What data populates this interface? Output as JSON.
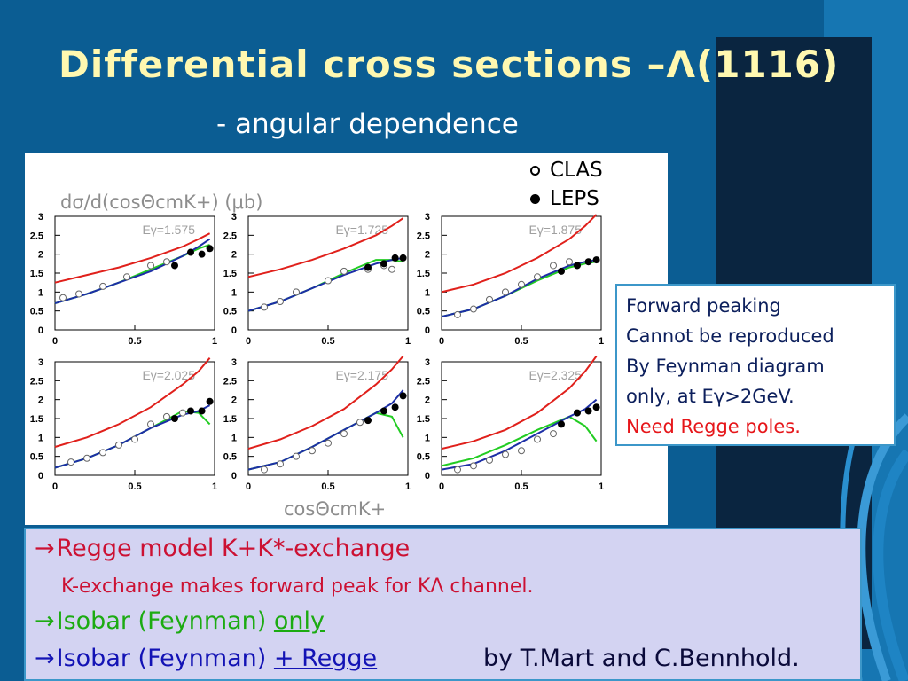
{
  "slide": {
    "title": "Differential cross sections –Λ(1116)",
    "subtitle": "- angular dependence"
  },
  "legend": [
    {
      "label": "CLAS",
      "marker": "open-circle"
    },
    {
      "label": "LEPS",
      "marker": "filled-circle"
    }
  ],
  "chart_data": {
    "type": "line",
    "ylabel": "dσ/d(cosΘcmK+) (μb)",
    "xlabel": "cosΘcmK+",
    "xlim": [
      0,
      1
    ],
    "ylim": [
      0,
      3
    ],
    "xticks": [
      "0",
      "0.5",
      "1"
    ],
    "yticks": [
      "0",
      "0.5",
      "1",
      "1.5",
      "2",
      "2.5",
      "3"
    ],
    "colors": {
      "red": "#e0201b",
      "green": "#22cc22",
      "blue": "#1c2ea6"
    },
    "panels": [
      {
        "label": "Eγ=1.575",
        "red": [
          [
            0,
            1.25
          ],
          [
            0.2,
            1.45
          ],
          [
            0.4,
            1.65
          ],
          [
            0.6,
            1.9
          ],
          [
            0.8,
            2.2
          ],
          [
            0.9,
            2.4
          ],
          [
            0.97,
            2.55
          ]
        ],
        "green": [
          [
            0,
            0.7
          ],
          [
            0.2,
            0.95
          ],
          [
            0.4,
            1.25
          ],
          [
            0.6,
            1.6
          ],
          [
            0.8,
            1.95
          ],
          [
            0.9,
            2.15
          ],
          [
            0.97,
            2.25
          ]
        ],
        "blue": [
          [
            0,
            0.7
          ],
          [
            0.2,
            0.95
          ],
          [
            0.4,
            1.25
          ],
          [
            0.6,
            1.55
          ],
          [
            0.8,
            1.95
          ],
          [
            0.9,
            2.2
          ],
          [
            0.97,
            2.4
          ]
        ],
        "clas": [
          [
            0.05,
            0.85
          ],
          [
            0.15,
            0.95
          ],
          [
            0.3,
            1.15
          ],
          [
            0.45,
            1.4
          ],
          [
            0.6,
            1.7
          ],
          [
            0.7,
            1.8
          ]
        ],
        "leps": [
          [
            0.75,
            1.7
          ],
          [
            0.85,
            2.05
          ],
          [
            0.92,
            2.0
          ],
          [
            0.97,
            2.15
          ]
        ]
      },
      {
        "label": "Eγ=1.725",
        "red": [
          [
            0,
            1.4
          ],
          [
            0.2,
            1.6
          ],
          [
            0.4,
            1.85
          ],
          [
            0.6,
            2.15
          ],
          [
            0.8,
            2.5
          ],
          [
            0.9,
            2.75
          ],
          [
            0.97,
            2.95
          ]
        ],
        "green": [
          [
            0,
            0.5
          ],
          [
            0.2,
            0.75
          ],
          [
            0.4,
            1.1
          ],
          [
            0.6,
            1.5
          ],
          [
            0.8,
            1.85
          ],
          [
            0.9,
            1.85
          ],
          [
            0.97,
            1.8
          ]
        ],
        "blue": [
          [
            0,
            0.5
          ],
          [
            0.2,
            0.75
          ],
          [
            0.4,
            1.1
          ],
          [
            0.6,
            1.45
          ],
          [
            0.8,
            1.75
          ],
          [
            0.9,
            1.85
          ],
          [
            0.97,
            1.9
          ]
        ],
        "clas": [
          [
            0.1,
            0.6
          ],
          [
            0.2,
            0.75
          ],
          [
            0.3,
            1.0
          ],
          [
            0.5,
            1.3
          ],
          [
            0.6,
            1.55
          ],
          [
            0.75,
            1.6
          ],
          [
            0.85,
            1.7
          ],
          [
            0.9,
            1.6
          ]
        ],
        "leps": [
          [
            0.75,
            1.65
          ],
          [
            0.85,
            1.75
          ],
          [
            0.92,
            1.9
          ],
          [
            0.97,
            1.9
          ]
        ]
      },
      {
        "label": "Eγ=1.875",
        "red": [
          [
            0,
            1.0
          ],
          [
            0.2,
            1.2
          ],
          [
            0.4,
            1.5
          ],
          [
            0.6,
            1.9
          ],
          [
            0.8,
            2.4
          ],
          [
            0.9,
            2.75
          ],
          [
            0.97,
            3.05
          ]
        ],
        "green": [
          [
            0,
            0.35
          ],
          [
            0.2,
            0.55
          ],
          [
            0.4,
            0.9
          ],
          [
            0.6,
            1.3
          ],
          [
            0.8,
            1.65
          ],
          [
            0.9,
            1.75
          ],
          [
            0.97,
            1.8
          ]
        ],
        "blue": [
          [
            0,
            0.35
          ],
          [
            0.2,
            0.55
          ],
          [
            0.4,
            0.9
          ],
          [
            0.6,
            1.35
          ],
          [
            0.8,
            1.7
          ],
          [
            0.9,
            1.8
          ],
          [
            0.97,
            1.85
          ]
        ],
        "clas": [
          [
            0.1,
            0.4
          ],
          [
            0.2,
            0.55
          ],
          [
            0.3,
            0.8
          ],
          [
            0.4,
            1.0
          ],
          [
            0.5,
            1.2
          ],
          [
            0.6,
            1.4
          ],
          [
            0.7,
            1.7
          ],
          [
            0.8,
            1.8
          ]
        ],
        "leps": [
          [
            0.75,
            1.55
          ],
          [
            0.85,
            1.7
          ],
          [
            0.92,
            1.8
          ],
          [
            0.97,
            1.85
          ]
        ]
      },
      {
        "label": "Eγ=2.025",
        "red": [
          [
            0,
            0.75
          ],
          [
            0.2,
            1.0
          ],
          [
            0.4,
            1.35
          ],
          [
            0.6,
            1.8
          ],
          [
            0.8,
            2.4
          ],
          [
            0.9,
            2.75
          ],
          [
            0.97,
            3.1
          ]
        ],
        "green": [
          [
            0,
            0.2
          ],
          [
            0.2,
            0.45
          ],
          [
            0.4,
            0.8
          ],
          [
            0.6,
            1.25
          ],
          [
            0.8,
            1.7
          ],
          [
            0.9,
            1.65
          ],
          [
            0.97,
            1.35
          ]
        ],
        "blue": [
          [
            0,
            0.2
          ],
          [
            0.2,
            0.45
          ],
          [
            0.4,
            0.8
          ],
          [
            0.6,
            1.25
          ],
          [
            0.8,
            1.6
          ],
          [
            0.9,
            1.7
          ],
          [
            0.97,
            1.85
          ]
        ],
        "clas": [
          [
            0.1,
            0.35
          ],
          [
            0.2,
            0.45
          ],
          [
            0.3,
            0.6
          ],
          [
            0.4,
            0.8
          ],
          [
            0.5,
            0.95
          ],
          [
            0.6,
            1.35
          ],
          [
            0.7,
            1.55
          ],
          [
            0.8,
            1.65
          ]
        ],
        "leps": [
          [
            0.75,
            1.5
          ],
          [
            0.85,
            1.7
          ],
          [
            0.92,
            1.7
          ],
          [
            0.97,
            1.95
          ]
        ]
      },
      {
        "label": "Eγ=2.175",
        "red": [
          [
            0,
            0.7
          ],
          [
            0.2,
            0.95
          ],
          [
            0.4,
            1.3
          ],
          [
            0.6,
            1.75
          ],
          [
            0.8,
            2.4
          ],
          [
            0.9,
            2.8
          ],
          [
            0.97,
            3.15
          ]
        ],
        "green": [
          [
            0,
            0.15
          ],
          [
            0.2,
            0.35
          ],
          [
            0.4,
            0.75
          ],
          [
            0.6,
            1.2
          ],
          [
            0.8,
            1.65
          ],
          [
            0.9,
            1.55
          ],
          [
            0.97,
            1.0
          ]
        ],
        "blue": [
          [
            0,
            0.15
          ],
          [
            0.2,
            0.35
          ],
          [
            0.4,
            0.75
          ],
          [
            0.6,
            1.2
          ],
          [
            0.8,
            1.65
          ],
          [
            0.9,
            1.9
          ],
          [
            0.97,
            2.25
          ]
        ],
        "clas": [
          [
            0.1,
            0.15
          ],
          [
            0.2,
            0.3
          ],
          [
            0.3,
            0.5
          ],
          [
            0.4,
            0.65
          ],
          [
            0.5,
            0.85
          ],
          [
            0.6,
            1.1
          ],
          [
            0.7,
            1.4
          ]
        ],
        "leps": [
          [
            0.75,
            1.45
          ],
          [
            0.85,
            1.7
          ],
          [
            0.92,
            1.8
          ],
          [
            0.97,
            2.1
          ]
        ]
      },
      {
        "label": "Eγ=2.325",
        "red": [
          [
            0,
            0.7
          ],
          [
            0.2,
            0.9
          ],
          [
            0.4,
            1.2
          ],
          [
            0.6,
            1.65
          ],
          [
            0.8,
            2.3
          ],
          [
            0.9,
            2.75
          ],
          [
            0.97,
            3.15
          ]
        ],
        "green": [
          [
            0,
            0.25
          ],
          [
            0.2,
            0.45
          ],
          [
            0.4,
            0.8
          ],
          [
            0.6,
            1.2
          ],
          [
            0.8,
            1.55
          ],
          [
            0.9,
            1.3
          ],
          [
            0.97,
            0.9
          ]
        ],
        "blue": [
          [
            0,
            0.15
          ],
          [
            0.2,
            0.3
          ],
          [
            0.4,
            0.65
          ],
          [
            0.6,
            1.1
          ],
          [
            0.8,
            1.55
          ],
          [
            0.9,
            1.75
          ],
          [
            0.97,
            2.0
          ]
        ],
        "clas": [
          [
            0.1,
            0.15
          ],
          [
            0.2,
            0.25
          ],
          [
            0.3,
            0.4
          ],
          [
            0.4,
            0.55
          ],
          [
            0.5,
            0.65
          ],
          [
            0.6,
            0.95
          ],
          [
            0.7,
            1.1
          ]
        ],
        "leps": [
          [
            0.75,
            1.35
          ],
          [
            0.85,
            1.65
          ],
          [
            0.92,
            1.7
          ],
          [
            0.97,
            1.8
          ]
        ]
      }
    ]
  },
  "note": {
    "line1": "Forward peaking",
    "line2": "Cannot be reproduced",
    "line3": "By Feynman diagram",
    "line4": "only, at Eγ>2GeV.",
    "line5": "Need Regge poles."
  },
  "bottom": {
    "arrow": "→",
    "line1": "Regge model K+K*-exchange",
    "line2": "K-exchange makes forward peak for KΛ channel.",
    "line3_prefix": "Isobar (Feynman) ",
    "line3_underlined": "only",
    "line4_prefix": "Isobar (Feynman) ",
    "line4_underlined": "+ Regge",
    "credit": "by T.Mart and C.Bennhold."
  }
}
